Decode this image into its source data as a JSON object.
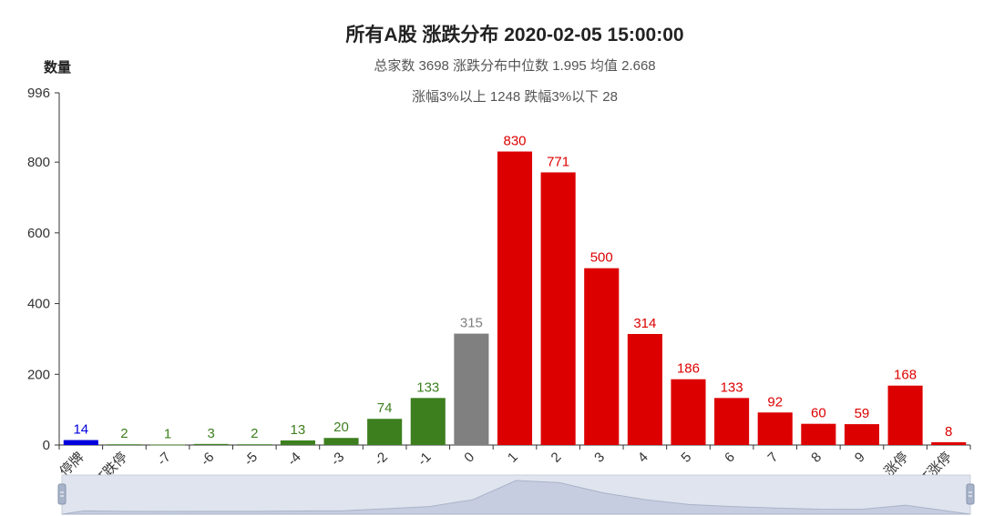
{
  "title": "所有A股 涨跌分布 2020-02-05 15:00:00",
  "subtitle_line1": "总家数 3698    涨跌分布中位数 1.995    均值 2.668",
  "subtitle_line2": "涨幅3%以上 1248    跌幅3%以下 28",
  "chart_data": {
    "type": "bar",
    "title": "所有A股 涨跌分布 2020-02-05 15:00:00",
    "ylabel": "数量",
    "xlabel": "",
    "ylim": [
      0,
      996
    ],
    "yticks": [
      0,
      200,
      400,
      600,
      800,
      996
    ],
    "categories": [
      "停牌",
      "ST跌停",
      "-7",
      "-6",
      "-5",
      "-4",
      "-3",
      "-2",
      "-1",
      "0",
      "1",
      "2",
      "3",
      "4",
      "5",
      "6",
      "7",
      "8",
      "9",
      "涨停",
      "ST涨停"
    ],
    "values": [
      14,
      2,
      1,
      3,
      2,
      13,
      20,
      74,
      133,
      315,
      830,
      771,
      500,
      314,
      186,
      133,
      92,
      60,
      59,
      168,
      8
    ],
    "colors": [
      "#0000dd",
      "#3d7f1f",
      "#3d7f1f",
      "#3d7f1f",
      "#3d7f1f",
      "#3d7f1f",
      "#3d7f1f",
      "#3d7f1f",
      "#3d7f1f",
      "#808080",
      "#dd0000",
      "#dd0000",
      "#dd0000",
      "#dd0000",
      "#dd0000",
      "#dd0000",
      "#dd0000",
      "#dd0000",
      "#dd0000",
      "#dd0000",
      "#dd0000"
    ],
    "grid": false,
    "legend": "none",
    "datazoom": true
  }
}
